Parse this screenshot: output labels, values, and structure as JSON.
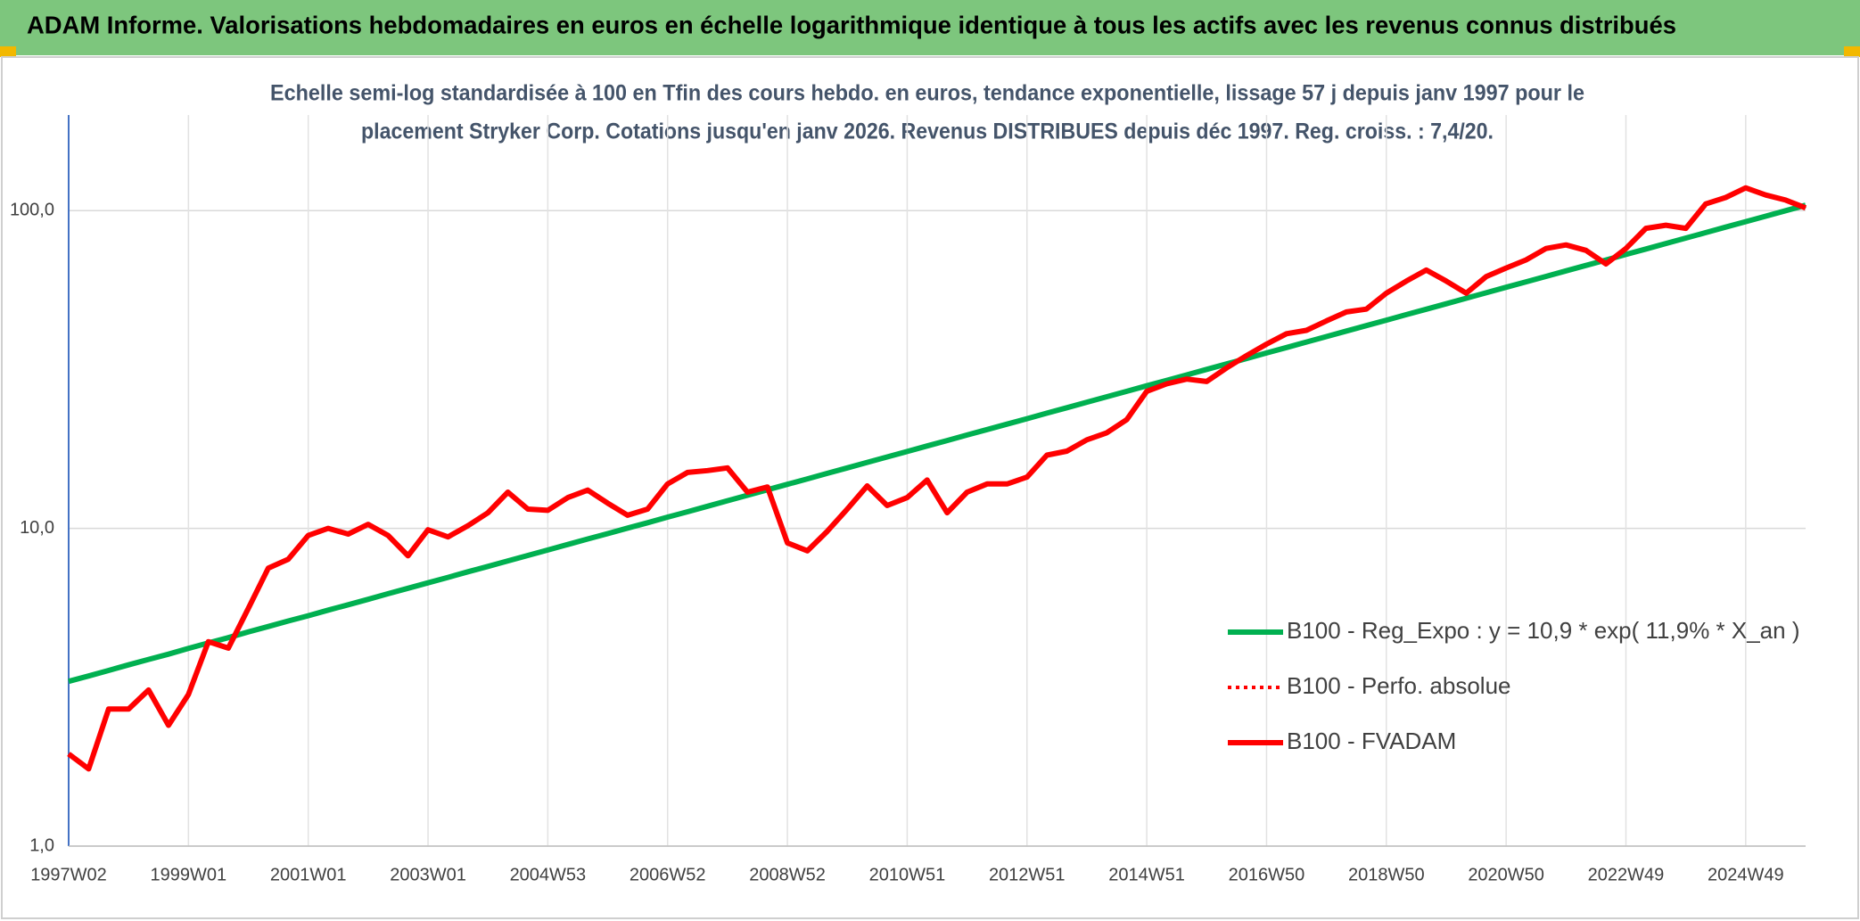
{
  "header": {
    "title": "ADAM Informe. Valorisations hebdomadaires en euros en échelle logarithmique identique à tous les actifs avec les revenus connus distribués"
  },
  "chart_data": {
    "type": "line",
    "subtitle": [
      "Echelle semi-log standardisée à 100 en Tfin des cours hebdo. en euros, tendance exponentielle, lissage 57 j depuis janv 1997 pour le",
      "placement Stryker Corp. Cotations jusqu'en janv 2026. Revenus DISTRIBUES depuis déc 1997. Reg. croiss. : 7,4/20."
    ],
    "categories": [
      "1997W02",
      null,
      null,
      null,
      null,
      null,
      "1999W01",
      null,
      null,
      null,
      null,
      null,
      "2001W01",
      null,
      null,
      null,
      null,
      null,
      "2003W01",
      null,
      null,
      null,
      null,
      null,
      "2004W53",
      null,
      null,
      null,
      null,
      null,
      "2006W52",
      null,
      null,
      null,
      null,
      null,
      "2008W52",
      null,
      null,
      null,
      null,
      null,
      "2010W51",
      null,
      null,
      null,
      null,
      null,
      "2012W51",
      null,
      null,
      null,
      null,
      null,
      "2014W51",
      null,
      null,
      null,
      null,
      null,
      "2016W50",
      null,
      null,
      null,
      null,
      null,
      "2018W50",
      null,
      null,
      null,
      null,
      null,
      "2020W50",
      null,
      null,
      null,
      null,
      null,
      "2022W49",
      null,
      null,
      null,
      null,
      null,
      "2024W49",
      null,
      null,
      null
    ],
    "series": [
      {
        "name": "B100 - Reg_Expo : y = 10,9 * exp( 11,9% *  X_an )",
        "color": "#00b050",
        "style": "solid",
        "values": [
          3.3,
          3.43,
          3.57,
          3.72,
          3.87,
          4.02,
          4.19,
          4.36,
          4.53,
          4.72,
          4.91,
          5.11,
          5.31,
          5.53,
          5.75,
          5.98,
          6.23,
          6.48,
          6.74,
          7.01,
          7.3,
          7.59,
          7.9,
          8.22,
          8.55,
          8.9,
          9.26,
          9.63,
          10.02,
          10.42,
          10.85,
          11.28,
          11.74,
          12.22,
          12.71,
          13.23,
          13.76,
          14.32,
          14.9,
          15.5,
          16.13,
          16.78,
          17.46,
          18.17,
          18.9,
          19.67,
          20.46,
          21.29,
          22.15,
          23.05,
          23.98,
          24.95,
          25.96,
          27.01,
          28.1,
          29.24,
          30.42,
          31.65,
          32.93,
          34.26,
          35.65,
          37.09,
          38.59,
          40.15,
          41.78,
          43.47,
          45.23,
          47.06,
          48.96,
          50.94,
          53.0,
          55.15,
          57.38,
          59.7,
          62.11,
          64.63,
          67.24,
          69.96,
          72.79,
          75.74,
          78.8,
          81.99,
          85.31,
          88.76,
          92.35,
          96.08,
          99.98,
          104.0
        ]
      },
      {
        "name": "B100 - Perfo. absolue",
        "color": "#ff0000",
        "style": "dotted",
        "values": [
          1.95,
          1.75,
          2.7,
          2.7,
          3.1,
          2.4,
          3.0,
          4.4,
          4.2,
          5.6,
          7.5,
          8.0,
          9.5,
          10.0,
          9.6,
          10.3,
          9.5,
          8.2,
          9.9,
          9.4,
          10.2,
          11.2,
          13.0,
          11.5,
          11.4,
          12.5,
          13.2,
          12.0,
          11.0,
          11.5,
          13.8,
          15.0,
          15.2,
          15.5,
          13.0,
          13.5,
          9.0,
          8.5,
          9.8,
          11.5,
          13.6,
          11.8,
          12.5,
          14.2,
          11.2,
          13.0,
          13.8,
          13.8,
          14.5,
          17.0,
          17.5,
          19.0,
          20.0,
          22.0,
          27.0,
          28.5,
          29.5,
          29.0,
          32.0,
          35.0,
          38.0,
          41.0,
          42.0,
          45.0,
          48.0,
          49.0,
          55.0,
          60.0,
          65.0,
          60.0,
          55.0,
          62.0,
          66.0,
          70.0,
          76.0,
          78.0,
          75.0,
          68.0,
          76.0,
          88.0,
          90.0,
          88.0,
          105.0,
          110.0,
          118.0,
          112.0,
          108.0,
          102.0
        ]
      },
      {
        "name": "B100 - FVADAM",
        "color": "#ff0000",
        "style": "solid",
        "values": [
          1.95,
          1.75,
          2.7,
          2.7,
          3.1,
          2.4,
          3.0,
          4.4,
          4.2,
          5.6,
          7.5,
          8.0,
          9.5,
          10.0,
          9.6,
          10.3,
          9.5,
          8.2,
          9.9,
          9.4,
          10.2,
          11.2,
          13.0,
          11.5,
          11.4,
          12.5,
          13.2,
          12.0,
          11.0,
          11.5,
          13.8,
          15.0,
          15.2,
          15.5,
          13.0,
          13.5,
          9.0,
          8.5,
          9.8,
          11.5,
          13.6,
          11.8,
          12.5,
          14.2,
          11.2,
          13.0,
          13.8,
          13.8,
          14.5,
          17.0,
          17.5,
          19.0,
          20.0,
          22.0,
          27.0,
          28.5,
          29.5,
          29.0,
          32.0,
          35.0,
          38.0,
          41.0,
          42.0,
          45.0,
          48.0,
          49.0,
          55.0,
          60.0,
          65.0,
          60.0,
          55.0,
          62.0,
          66.0,
          70.0,
          76.0,
          78.0,
          75.0,
          68.0,
          76.0,
          88.0,
          90.0,
          88.0,
          105.0,
          110.0,
          118.0,
          112.0,
          108.0,
          102.0
        ]
      }
    ],
    "ylim": [
      1,
      200
    ],
    "log_scale": true,
    "yticks": [
      {
        "value": 1,
        "label": "1,0"
      },
      {
        "value": 10,
        "label": "10,0"
      },
      {
        "value": 100,
        "label": "100,0"
      }
    ],
    "grid": true,
    "legend": "lower right"
  }
}
